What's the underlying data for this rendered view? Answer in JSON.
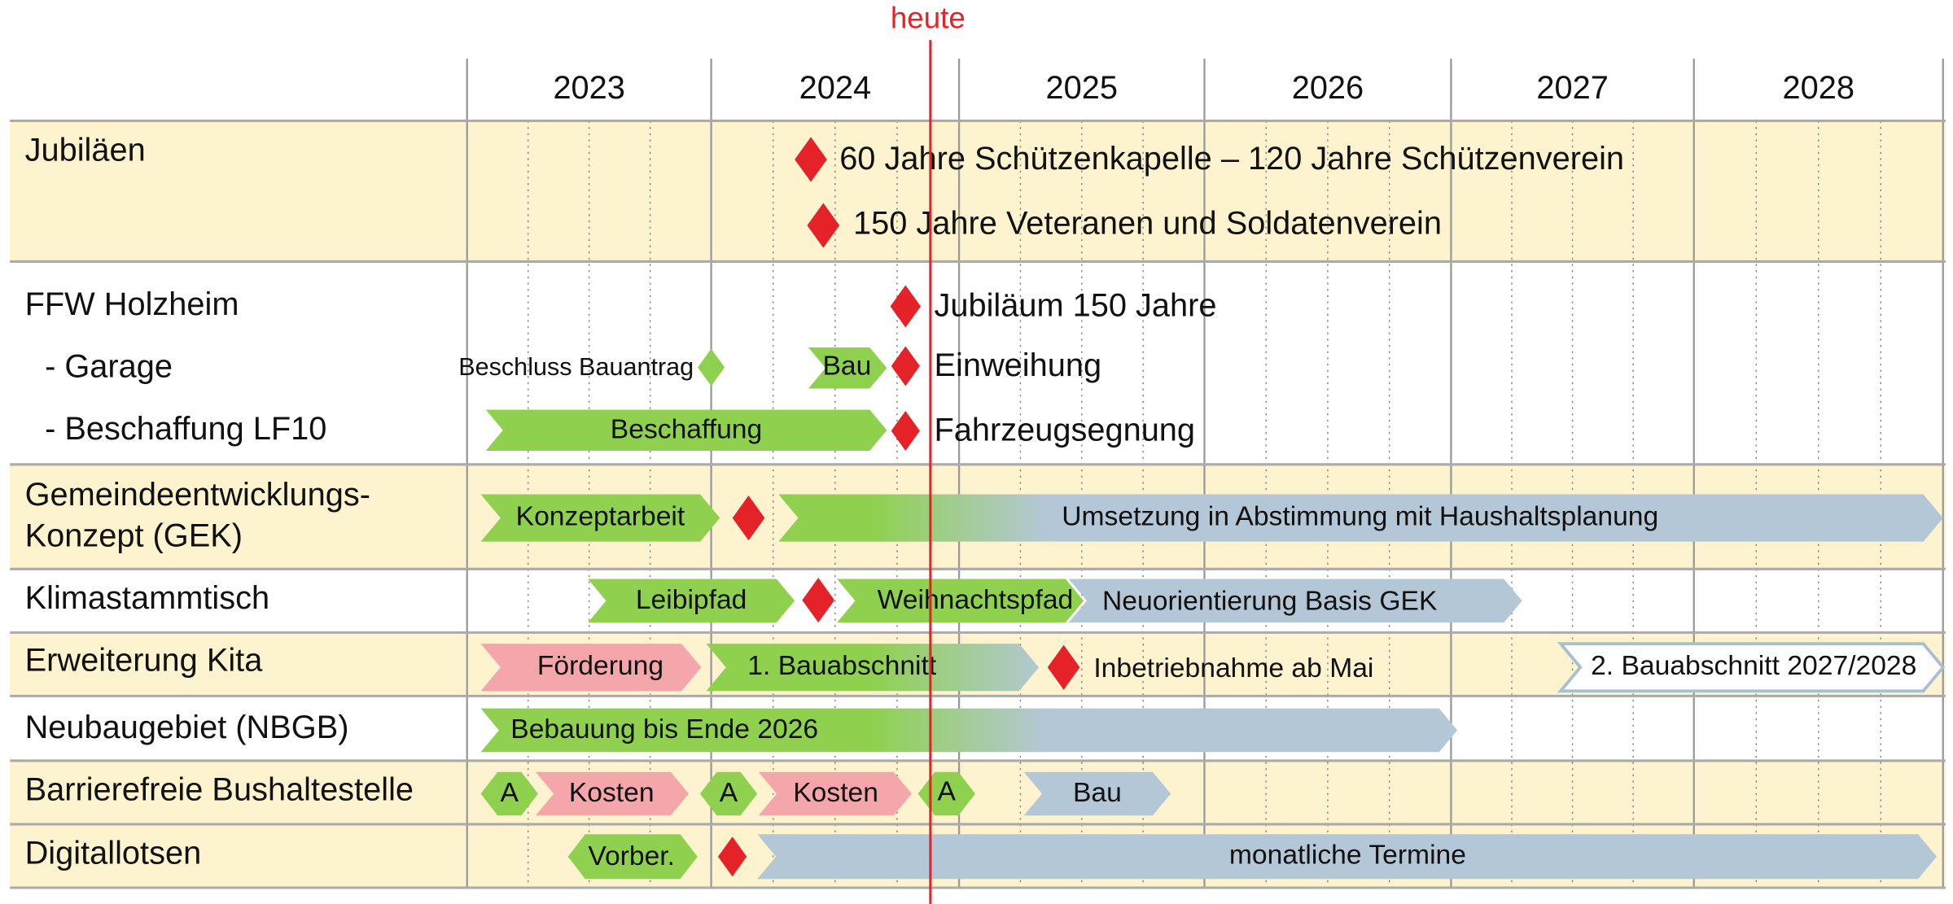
{
  "header": {
    "years": [
      "2023",
      "2024",
      "2025",
      "2026",
      "2027",
      "2028"
    ],
    "today": "heute"
  },
  "rows": [
    {
      "label": [
        "Jubiläen"
      ],
      "items": [
        "60 Jahre Schützenkapelle – 120 Jahre Schützenverein",
        "150 Jahre Veteranen und Soldatenverein"
      ]
    },
    {
      "label": [
        "FFW Holzheim"
      ],
      "items": [
        "Jubiläum 150 Jahre"
      ]
    },
    {
      "label": [
        "- Garage"
      ],
      "items": [
        "Beschluss Bauantrag",
        "Bau",
        "Einweihung"
      ]
    },
    {
      "label": [
        "- Beschaffung LF10"
      ],
      "items": [
        "Beschaffung",
        "Fahrzeugsegnung"
      ]
    },
    {
      "label": [
        "Gemeindeentwicklungs-",
        "Konzept (GEK)"
      ],
      "items": [
        "Konzeptarbeit",
        "Umsetzung in Abstimmung mit Haushaltsplanung"
      ]
    },
    {
      "label": [
        "Klimastammtisch"
      ],
      "items": [
        "Leibipfad",
        "Weihnachtspfad",
        "Neuorientierung Basis GEK"
      ]
    },
    {
      "label": [
        "Erweiterung Kita"
      ],
      "items": [
        "Förderung",
        "1. Bauabschnitt",
        "Inbetriebnahme ab Mai",
        "2. Bauabschnitt 2027/2028"
      ]
    },
    {
      "label": [
        "Neubaugebiet (NBGB)"
      ],
      "items": [
        "Bebauung bis Ende 2026"
      ]
    },
    {
      "label": [
        "Barrierefreie Bushaltestelle"
      ],
      "items": [
        "A",
        "Kosten",
        "A",
        "Kosten",
        "A",
        "Bau"
      ]
    },
    {
      "label": [
        "Digitallotsen"
      ],
      "items": [
        "Vorber.",
        "monatliche Termine"
      ]
    }
  ]
}
